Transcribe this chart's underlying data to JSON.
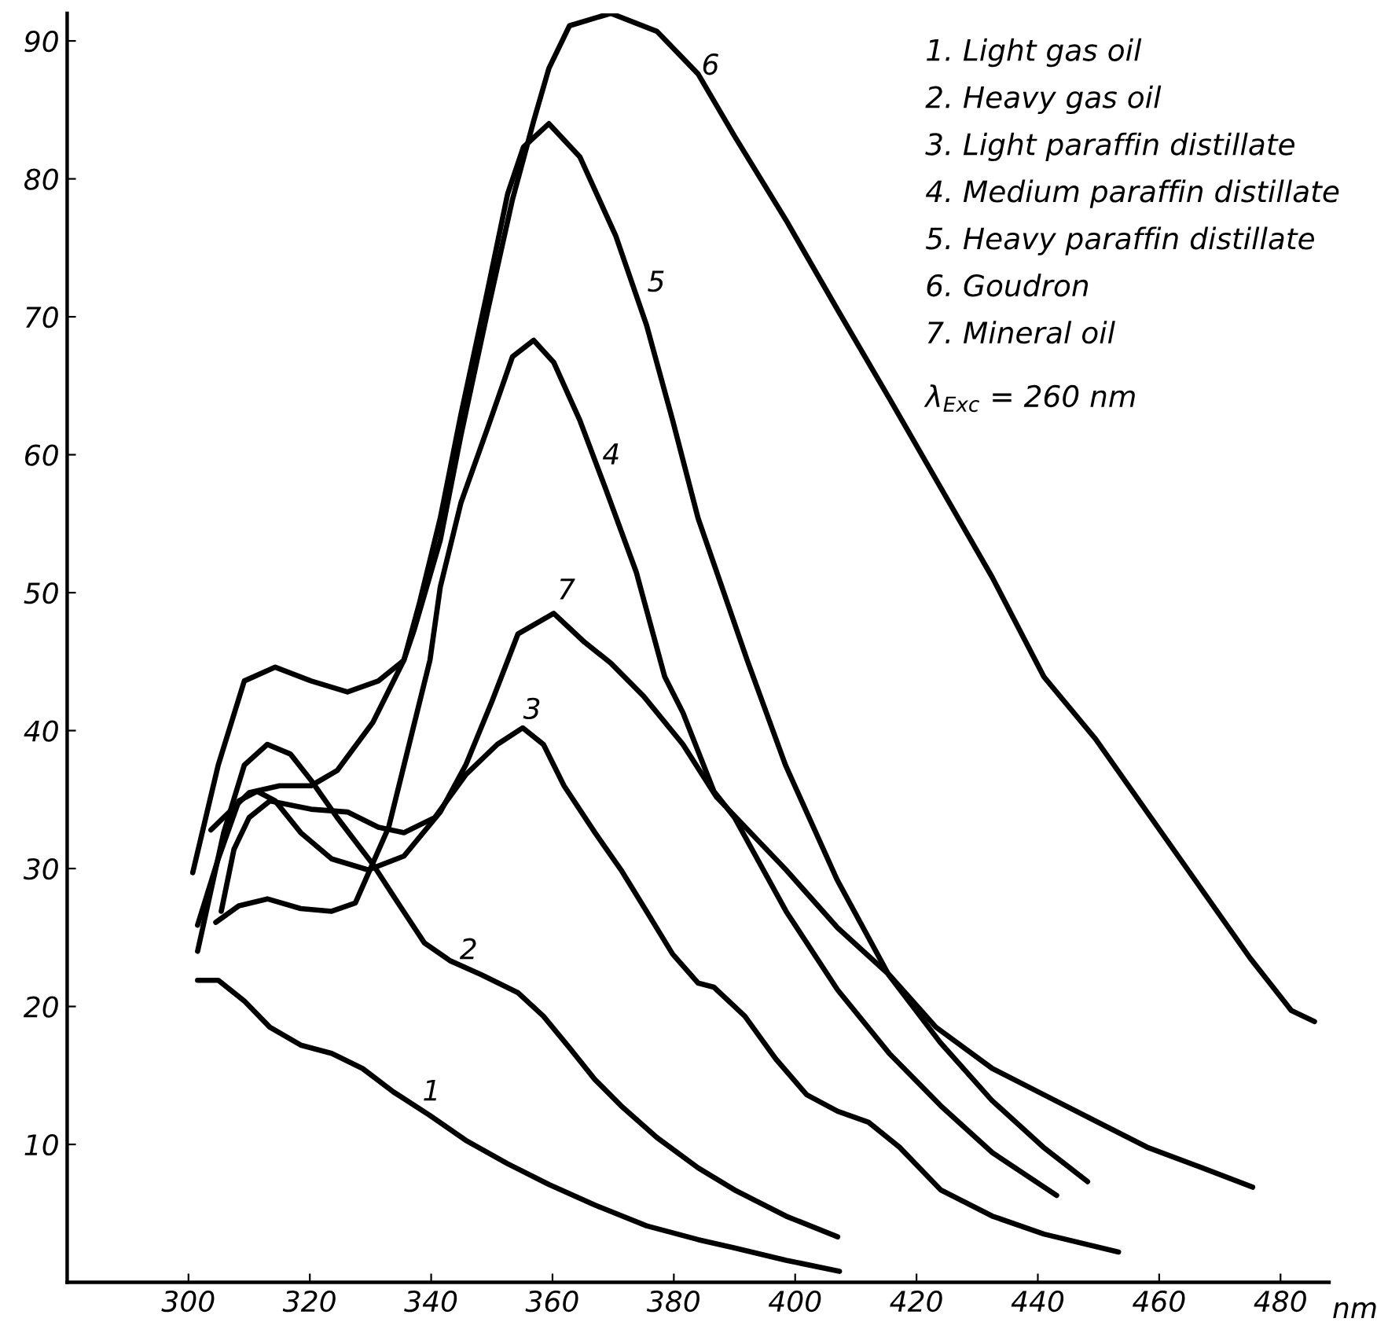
{
  "chart_data": {
    "type": "line",
    "xlabel": "nm",
    "xlim": [
      280,
      488
    ],
    "xticks": [
      300,
      320,
      340,
      360,
      380,
      400,
      420,
      440,
      460,
      480
    ],
    "ylim": [
      0,
      92
    ],
    "yticks": [
      10,
      20,
      30,
      40,
      50,
      60,
      70,
      80,
      90
    ],
    "grid": false,
    "legend": false,
    "marker": "none",
    "line_style": "solid",
    "series": [
      {
        "color": "#000000",
        "x": [
          301.5,
          304.9,
          309.2,
          313.4,
          318.5,
          323.6,
          328.7,
          333.8,
          339.8,
          345.7,
          352.6,
          359.4,
          367,
          375.5,
          384,
          390,
          398.5,
          407.3
        ],
        "values": [
          21.9,
          21.9,
          20.4,
          18.5,
          17.2,
          16.6,
          15.5,
          13.8,
          12.1,
          10.3,
          8.6,
          7.1,
          5.6,
          4.1,
          3.1,
          2.5,
          1.6,
          0.8
        ]
      },
      {
        "color": "#000000",
        "x": [
          301.5,
          305.8,
          309.2,
          313,
          316.8,
          320.2,
          324.5,
          330.4,
          333.8,
          338.9,
          343.2,
          348.3,
          354.3,
          358.5,
          362.8,
          367,
          371.3,
          377.2,
          384,
          390,
          398.5,
          407
        ],
        "values": [
          24,
          32.6,
          37.5,
          39,
          38.3,
          36.4,
          33.7,
          30.3,
          28,
          24.6,
          23.3,
          22.3,
          21,
          19.3,
          17,
          14.7,
          12.8,
          10.5,
          8.3,
          6.7,
          4.8,
          3.3
        ]
      },
      {
        "color": "#000000",
        "x": [
          305.4,
          307.5,
          310,
          313.4,
          320.2,
          326.2,
          331.3,
          335.5,
          340.6,
          345.7,
          350.9,
          355.1,
          358.5,
          361.9,
          367,
          371.3,
          375.5,
          379.8,
          384,
          386.6,
          391.7,
          396.8,
          401.9,
          407,
          412.1,
          417.2,
          424,
          432.5,
          441,
          453.3
        ],
        "values": [
          26.9,
          31.4,
          33.7,
          34.9,
          34.3,
          34.1,
          33,
          32.6,
          33.7,
          36.8,
          39,
          40.2,
          39,
          36,
          32.6,
          29.9,
          26.9,
          23.8,
          21.7,
          21.4,
          19.3,
          16.2,
          13.6,
          12.4,
          11.6,
          9.8,
          6.7,
          4.8,
          3.5,
          2.2
        ]
      },
      {
        "color": "#000000",
        "x": [
          304.5,
          308.3,
          313,
          318.5,
          323.6,
          327.5,
          333,
          339.8,
          341.5,
          344.9,
          349.2,
          353.4,
          356.9,
          360.2,
          364.5,
          368.7,
          373.8,
          378.5,
          381.5,
          386.6,
          390,
          398.5,
          407,
          415.5,
          424,
          432.5,
          443.1
        ],
        "values": [
          26.1,
          27.3,
          27.8,
          27.1,
          26.9,
          27.5,
          33,
          45.1,
          50.4,
          56.5,
          61.8,
          67.1,
          68.3,
          66.7,
          62.5,
          57.6,
          51.5,
          43.9,
          41.3,
          35.6,
          33.7,
          26.9,
          21.2,
          16.6,
          12.8,
          9.4,
          6.3
        ]
      },
      {
        "color": "#000000",
        "x": [
          303.7,
          310,
          315,
          320.2,
          324.5,
          330.4,
          335.5,
          338.1,
          341.5,
          344.9,
          349.2,
          352.6,
          355.2,
          359.4,
          364.5,
          370.4,
          375.5,
          379.8,
          384,
          392.1,
          398.4,
          406.9,
          415.4,
          423.9,
          432.4,
          440.9,
          448.2
        ],
        "values": [
          32.8,
          35.5,
          36,
          36,
          37.1,
          40.6,
          45.1,
          49.3,
          55.4,
          62.9,
          71.7,
          78.9,
          82.3,
          84,
          81.6,
          75.9,
          69.4,
          62.5,
          55.4,
          45.1,
          37.5,
          29.2,
          22.3,
          17.4,
          13.2,
          9.8,
          7.3
        ]
      },
      {
        "color": "#000000",
        "x": [
          300.7,
          304.9,
          309.2,
          314.3,
          320.2,
          326.2,
          331.3,
          335.5,
          337.2,
          341.5,
          344.9,
          349.2,
          353.4,
          356.9,
          359.4,
          362.8,
          369.6,
          377.2,
          384,
          390,
          398.5,
          407,
          415.5,
          424,
          432.5,
          441,
          449.5,
          458,
          466.5,
          475,
          481.8,
          485.6
        ],
        "values": [
          29.7,
          37.5,
          43.6,
          44.6,
          43.6,
          42.8,
          43.6,
          45.1,
          47.3,
          53.8,
          61.4,
          70.2,
          78.5,
          84.2,
          88,
          91.1,
          92,
          90.7,
          87.6,
          83.1,
          77,
          70.5,
          64.1,
          57.6,
          51.1,
          43.9,
          39.4,
          34.1,
          28.8,
          23.5,
          19.7,
          18.9
        ]
      },
      {
        "color": "#000000",
        "x": [
          301.5,
          304.9,
          308.3,
          311.3,
          314.3,
          318.5,
          323.6,
          329.6,
          335.5,
          341.5,
          345.7,
          350,
          354.3,
          360.2,
          365.3,
          369.6,
          375,
          381.5,
          387,
          398.5,
          407,
          415.5,
          423.2,
          432.5,
          441,
          449.5,
          458,
          466.5,
          475.4
        ],
        "values": [
          25.9,
          30.7,
          34.9,
          35.6,
          34.9,
          32.6,
          30.7,
          29.9,
          30.9,
          34.1,
          37.5,
          42.1,
          47,
          48.5,
          46.4,
          44.9,
          42.5,
          39,
          35.2,
          29.9,
          25.7,
          22.3,
          18.5,
          15.5,
          13.6,
          11.7,
          9.8,
          8.4,
          6.9
        ]
      }
    ],
    "annotations": [
      "1",
      "2",
      "3",
      "4",
      "5",
      "6",
      "7",
      "1. Light gas oil",
      "2. Heavy gas oil",
      "3. Light paraffin distillate",
      "4. Medium paraffin distillate",
      "5. Heavy paraffin distillate",
      "6. Goudron",
      "7. Mineral oil",
      "λ$_{Exc}$ = 260 nm"
    ]
  }
}
